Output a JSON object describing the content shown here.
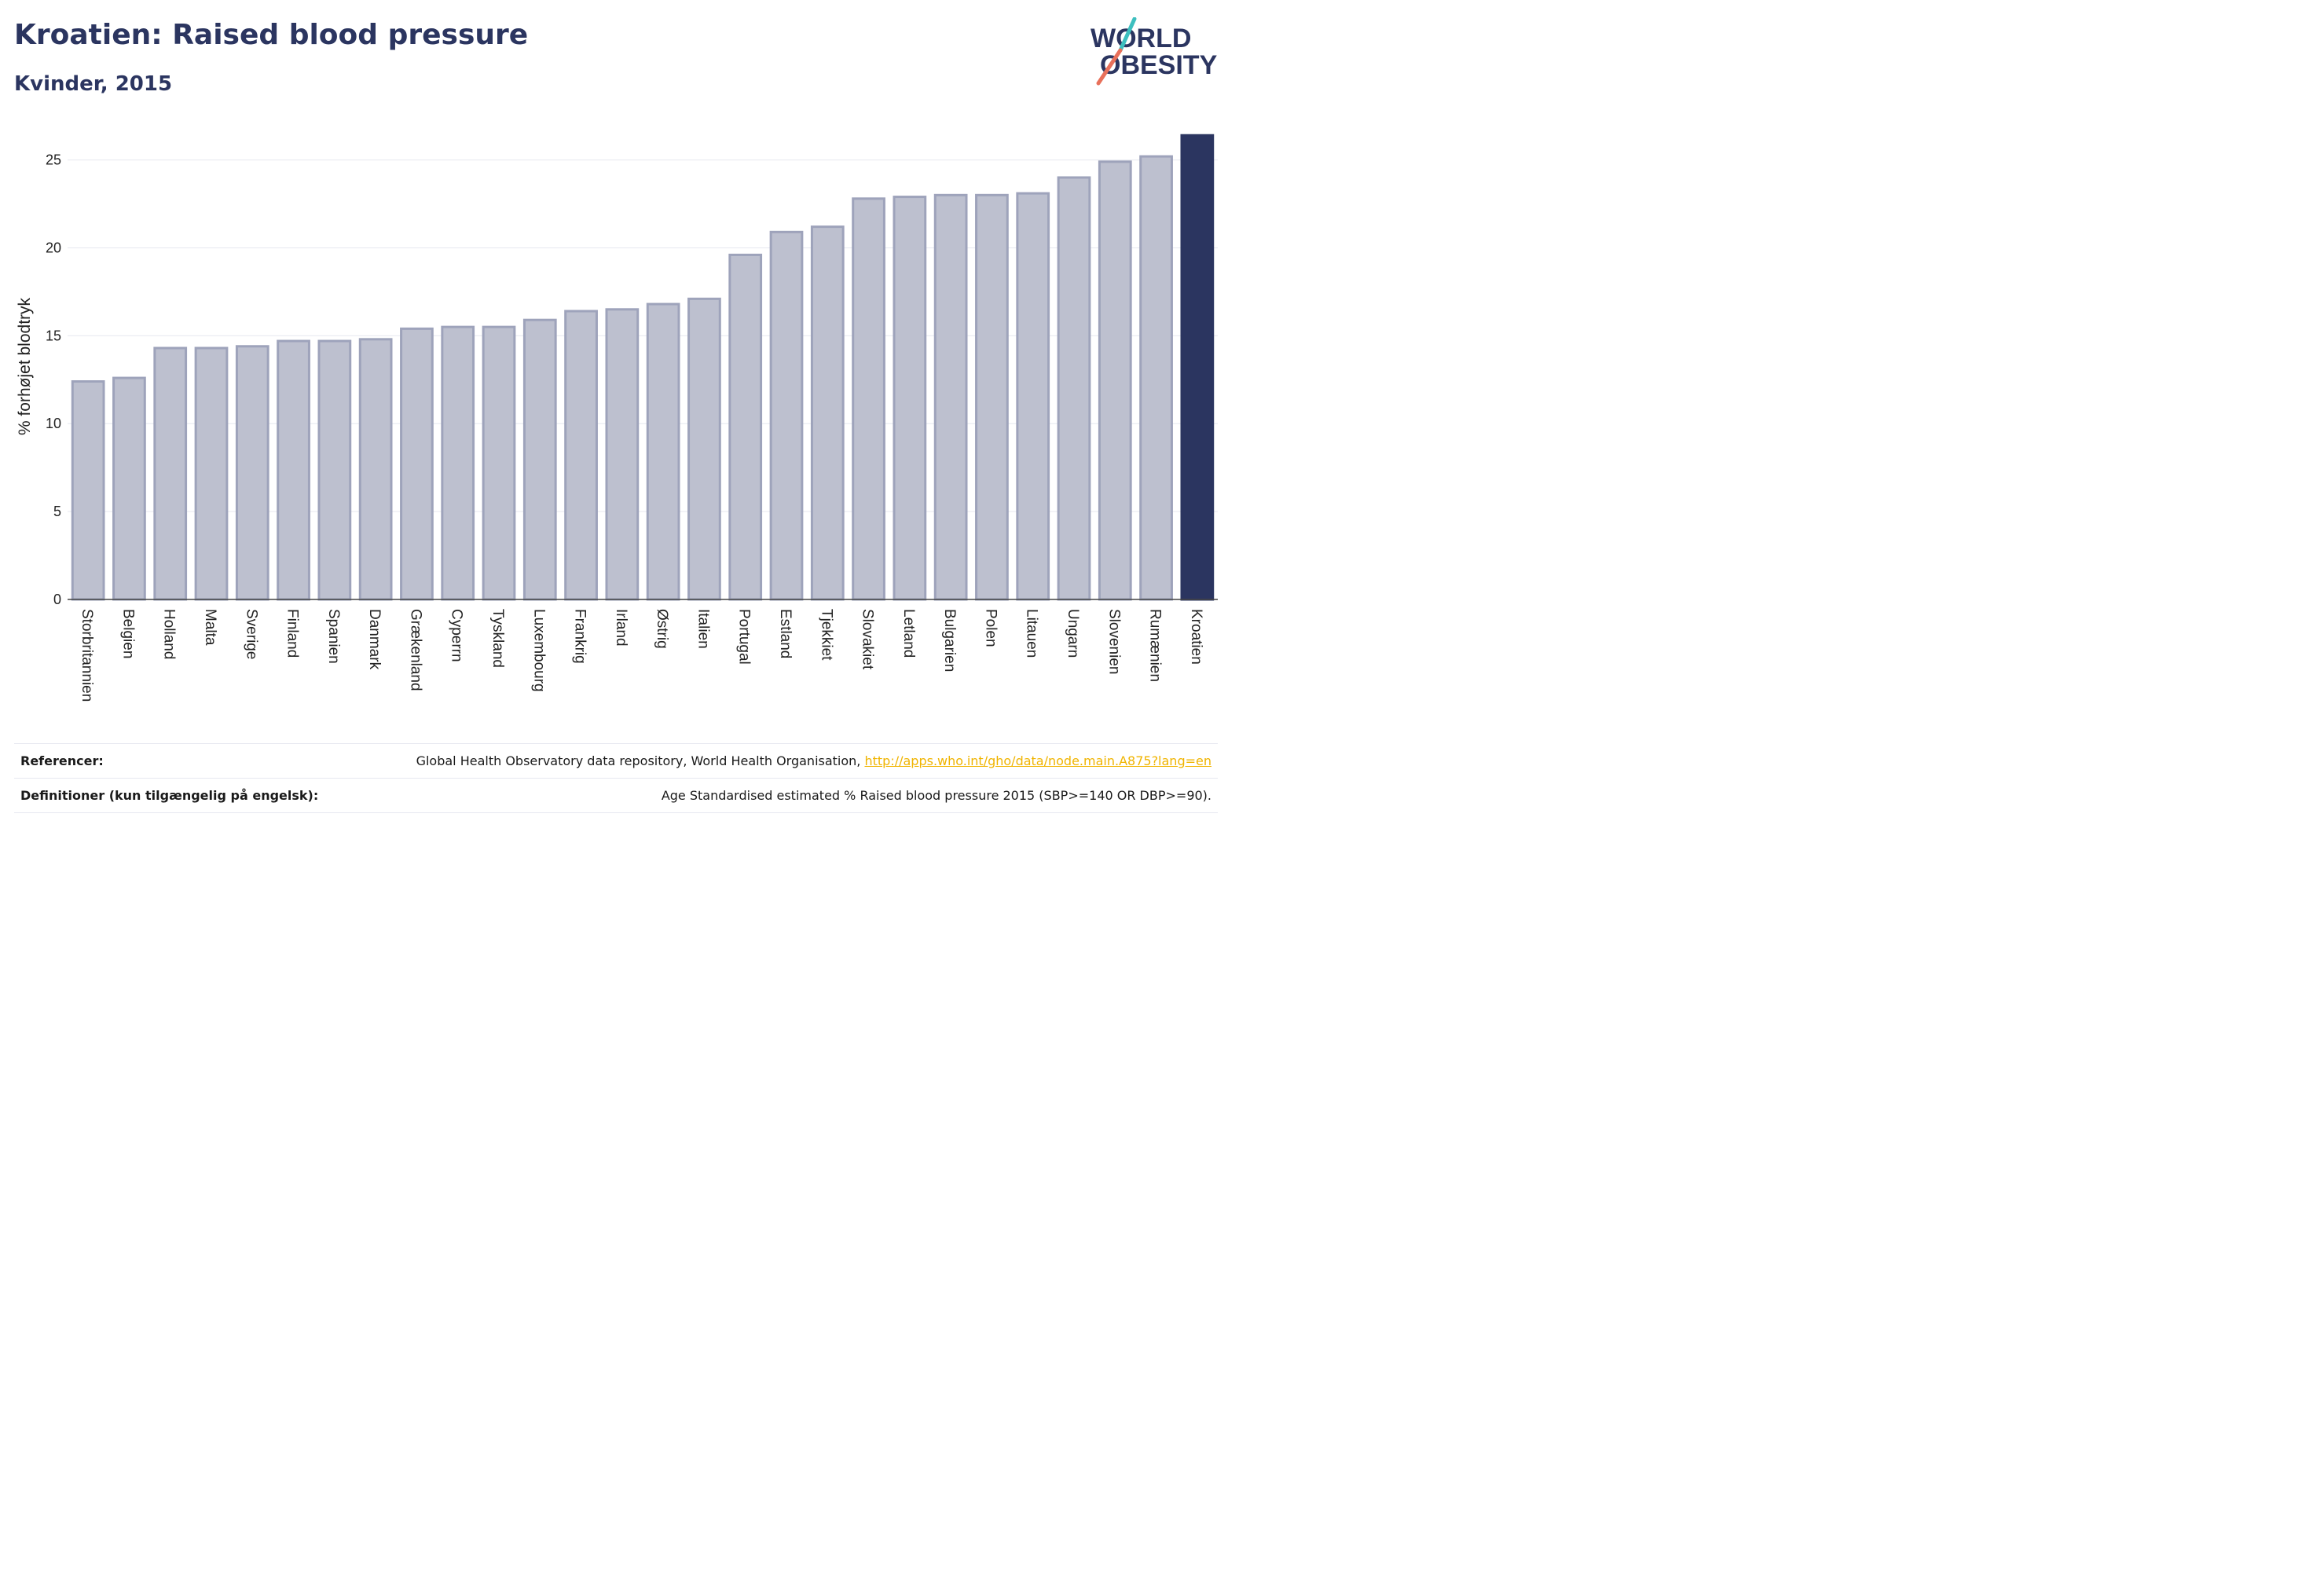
{
  "header": {
    "title": "Kroatien: Raised blood pressure",
    "subtitle": "Kvinder, 2015"
  },
  "logo": {
    "line1": "WORLD",
    "line2": "OBESITY",
    "icon": "world-obesity-logo"
  },
  "colors": {
    "bar": "#bdc0cf",
    "bar_border": "#9ea3bb",
    "highlight": "#2b3560",
    "accent_teal": "#3dbfbf",
    "accent_coral": "#e8705a"
  },
  "chart_data": {
    "type": "bar",
    "title": "Kroatien: Raised blood pressure",
    "subtitle": "Kvinder, 2015",
    "xlabel": "",
    "ylabel": "% forhøjet blodtryk",
    "ylim": [
      0,
      26.5
    ],
    "yticks": [
      0,
      5,
      10,
      15,
      20,
      25
    ],
    "grid": true,
    "highlight": "Kroatien",
    "categories": [
      "Storbritannien",
      "Belgien",
      "Holland",
      "Malta",
      "Sverige",
      "Finland",
      "Spanien",
      "Danmark",
      "Grækenland",
      "Cyperrn",
      "Tyskland",
      "Luxembourg",
      "Frankrig",
      "Irland",
      "Østrig",
      "Italien",
      "Portugal",
      "Estland",
      "Tjekkiet",
      "Slovakiet",
      "Letland",
      "Bulgarien",
      "Polen",
      "Litauen",
      "Ungarn",
      "Slovenien",
      "Rumænien",
      "Kroatien"
    ],
    "values": [
      12.4,
      12.6,
      14.3,
      14.3,
      14.4,
      14.7,
      14.7,
      14.8,
      15.4,
      15.5,
      15.5,
      15.9,
      16.4,
      16.5,
      16.8,
      17.1,
      19.6,
      20.9,
      21.2,
      22.8,
      22.9,
      23.0,
      23.0,
      23.1,
      24.0,
      24.9,
      25.2,
      26.4
    ]
  },
  "footer": {
    "references_label": "Referencer:",
    "references_text": "Global Health Observatory data repository, World Health Organisation, ",
    "references_link": "http://apps.who.int/gho/data/node.main.A875?lang=en",
    "definitions_label": "Definitioner (kun tilgængelig på engelsk):",
    "definitions_text": "Age Standardised estimated % Raised blood pressure 2015 (SBP>=140 OR DBP>=90)."
  }
}
